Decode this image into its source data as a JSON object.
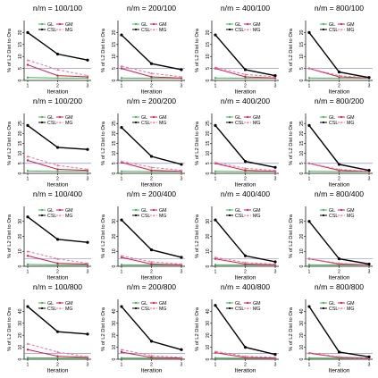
{
  "chart_data": [
    {
      "title": "n/m = 100/100",
      "xlabel": "Iteration",
      "ylabel": "% of L2 Dist to Ora",
      "type": "line",
      "x": [
        1,
        2,
        3
      ],
      "ylim": [
        0,
        25
      ],
      "yticks": [
        0,
        5,
        10,
        15,
        20
      ],
      "hline": 5,
      "series": [
        {
          "name": "GL",
          "values": [
            1.2,
            1.0,
            1.0
          ]
        },
        {
          "name": "CSL",
          "values": [
            20,
            11,
            8.5
          ]
        },
        {
          "name": "GM",
          "values": [
            6.5,
            2.0,
            1.5
          ]
        },
        {
          "name": "MG",
          "values": [
            8.5,
            4.5,
            2.0
          ]
        }
      ]
    },
    {
      "title": "n/m = 200/100",
      "xlabel": "Iteration",
      "ylabel": "% of L2 Dist to Ora",
      "type": "line",
      "x": [
        1,
        2,
        3
      ],
      "ylim": [
        0,
        25
      ],
      "yticks": [
        0,
        5,
        10,
        15,
        20
      ],
      "hline": 5,
      "series": [
        {
          "name": "GL",
          "values": [
            1.0,
            0.9,
            0.9
          ]
        },
        {
          "name": "CSL",
          "values": [
            19,
            7,
            4.5
          ]
        },
        {
          "name": "GM",
          "values": [
            5,
            1.5,
            1.0
          ]
        },
        {
          "name": "MG",
          "values": [
            6,
            3,
            1.5
          ]
        }
      ]
    },
    {
      "title": "n/m = 400/100",
      "xlabel": "Iteration",
      "ylabel": "% of L2 Dist to Ora",
      "type": "line",
      "x": [
        1,
        2,
        3
      ],
      "ylim": [
        0,
        25
      ],
      "yticks": [
        0,
        5,
        10,
        15,
        20
      ],
      "hline": 5,
      "series": [
        {
          "name": "GL",
          "values": [
            1.0,
            0.9,
            0.9
          ]
        },
        {
          "name": "CSL",
          "values": [
            19,
            4.5,
            2.0
          ]
        },
        {
          "name": "GM",
          "values": [
            5,
            1.5,
            1.0
          ]
        },
        {
          "name": "MG",
          "values": [
            5.5,
            2.5,
            1.5
          ]
        }
      ]
    },
    {
      "title": "n/m = 800/100",
      "xlabel": "Iteration",
      "ylabel": "% of L2 Dist to Ora",
      "type": "line",
      "x": [
        1,
        2,
        3
      ],
      "ylim": [
        0,
        25
      ],
      "yticks": [
        0,
        5,
        10,
        15,
        20
      ],
      "hline": 5,
      "series": [
        {
          "name": "GL",
          "values": [
            1.0,
            0.9,
            0.9
          ]
        },
        {
          "name": "CSL",
          "values": [
            20,
            3.5,
            1.2
          ]
        },
        {
          "name": "GM",
          "values": [
            5,
            1.5,
            1.0
          ]
        },
        {
          "name": "MG",
          "values": [
            5,
            2.0,
            1.0
          ]
        }
      ]
    },
    {
      "title": "n/m = 100/200",
      "xlabel": "Iteration",
      "ylabel": "% of L2 Dist to Ora",
      "type": "line",
      "x": [
        1,
        2,
        3
      ],
      "ylim": [
        0,
        30
      ],
      "yticks": [
        0,
        5,
        10,
        15,
        20,
        25
      ],
      "hline": 5,
      "series": [
        {
          "name": "GL",
          "values": [
            1.2,
            1.0,
            1.0
          ]
        },
        {
          "name": "CSL",
          "values": [
            24,
            13,
            12
          ]
        },
        {
          "name": "GM",
          "values": [
            6.5,
            2.0,
            1.5
          ]
        },
        {
          "name": "MG",
          "values": [
            8.5,
            4.0,
            2.0
          ]
        }
      ]
    },
    {
      "title": "n/m = 200/200",
      "xlabel": "Iteration",
      "ylabel": "% of L2 Dist to Ora",
      "type": "line",
      "x": [
        1,
        2,
        3
      ],
      "ylim": [
        0,
        30
      ],
      "yticks": [
        0,
        5,
        10,
        15,
        20,
        25
      ],
      "hline": 5,
      "series": [
        {
          "name": "GL",
          "values": [
            1.0,
            0.9,
            0.9
          ]
        },
        {
          "name": "CSL",
          "values": [
            23,
            8.5,
            4.5
          ]
        },
        {
          "name": "GM",
          "values": [
            5.5,
            1.5,
            1.0
          ]
        },
        {
          "name": "MG",
          "values": [
            6,
            3,
            1.5
          ]
        }
      ]
    },
    {
      "title": "n/m = 400/200",
      "xlabel": "Iteration",
      "ylabel": "% of L2 Dist to Ora",
      "type": "line",
      "x": [
        1,
        2,
        3
      ],
      "ylim": [
        0,
        30
      ],
      "yticks": [
        0,
        5,
        10,
        15,
        20,
        25
      ],
      "hline": 5,
      "series": [
        {
          "name": "GL",
          "values": [
            1.0,
            0.9,
            0.9
          ]
        },
        {
          "name": "CSL",
          "values": [
            24,
            6,
            3
          ]
        },
        {
          "name": "GM",
          "values": [
            5,
            1.5,
            1.0
          ]
        },
        {
          "name": "MG",
          "values": [
            5.5,
            2.5,
            1.5
          ]
        }
      ]
    },
    {
      "title": "n/m = 800/200",
      "xlabel": "Iteration",
      "ylabel": "% of L2 Dist to Ora",
      "type": "line",
      "x": [
        1,
        2,
        3
      ],
      "ylim": [
        0,
        30
      ],
      "yticks": [
        0,
        5,
        10,
        15,
        20,
        25
      ],
      "hline": 5,
      "series": [
        {
          "name": "GL",
          "values": [
            1.0,
            0.9,
            0.9
          ]
        },
        {
          "name": "CSL",
          "values": [
            24,
            4.5,
            1.5
          ]
        },
        {
          "name": "GM",
          "values": [
            5,
            1.5,
            1.0
          ]
        },
        {
          "name": "MG",
          "values": [
            5,
            2.0,
            1.0
          ]
        }
      ]
    },
    {
      "title": "n/m = 100/400",
      "xlabel": "Iteration",
      "ylabel": "% of L2 Dist to Ora",
      "type": "line",
      "x": [
        1,
        2,
        3
      ],
      "ylim": [
        0,
        40
      ],
      "yticks": [
        0,
        10,
        20,
        30
      ],
      "hline": 5,
      "series": [
        {
          "name": "GL",
          "values": [
            1.2,
            1.0,
            1.0
          ]
        },
        {
          "name": "CSL",
          "values": [
            33,
            18,
            16
          ]
        },
        {
          "name": "GM",
          "values": [
            7,
            2.0,
            1.5
          ]
        },
        {
          "name": "MG",
          "values": [
            10,
            5,
            2.0
          ]
        }
      ]
    },
    {
      "title": "n/m = 200/400",
      "xlabel": "Iteration",
      "ylabel": "% of L2 Dist to Ora",
      "type": "line",
      "x": [
        1,
        2,
        3
      ],
      "ylim": [
        0,
        40
      ],
      "yticks": [
        0,
        10,
        20,
        30
      ],
      "hline": 5,
      "series": [
        {
          "name": "GL",
          "values": [
            1.0,
            0.9,
            0.9
          ]
        },
        {
          "name": "CSL",
          "values": [
            31,
            11,
            6
          ]
        },
        {
          "name": "GM",
          "values": [
            6,
            1.5,
            1.0
          ]
        },
        {
          "name": "MG",
          "values": [
            7,
            3,
            1.5
          ]
        }
      ]
    },
    {
      "title": "n/m = 400/400",
      "xlabel": "Iteration",
      "ylabel": "% of L2 Dist to Ora",
      "type": "line",
      "x": [
        1,
        2,
        3
      ],
      "ylim": [
        0,
        40
      ],
      "yticks": [
        0,
        10,
        20,
        30
      ],
      "hline": 5,
      "series": [
        {
          "name": "GL",
          "values": [
            1.0,
            0.9,
            0.9
          ]
        },
        {
          "name": "CSL",
          "values": [
            31,
            7,
            3
          ]
        },
        {
          "name": "GM",
          "values": [
            5,
            1.5,
            1.0
          ]
        },
        {
          "name": "MG",
          "values": [
            6,
            2.5,
            1.5
          ]
        }
      ]
    },
    {
      "title": "n/m = 800/400",
      "xlabel": "Iteration",
      "ylabel": "% of L2 Dist to Ora",
      "type": "line",
      "x": [
        1,
        2,
        3
      ],
      "ylim": [
        0,
        40
      ],
      "yticks": [
        0,
        10,
        20,
        30
      ],
      "hline": 5,
      "series": [
        {
          "name": "GL",
          "values": [
            1.0,
            0.9,
            0.9
          ]
        },
        {
          "name": "CSL",
          "values": [
            30,
            5,
            1.5
          ]
        },
        {
          "name": "GM",
          "values": [
            5,
            1.5,
            1.0
          ]
        },
        {
          "name": "MG",
          "values": [
            5,
            2.0,
            1.0
          ]
        }
      ]
    },
    {
      "title": "n/m = 100/800",
      "xlabel": "Iteration",
      "ylabel": "% of L2 Dist to Ora",
      "type": "line",
      "x": [
        1,
        2,
        3
      ],
      "ylim": [
        0,
        50
      ],
      "yticks": [
        0,
        10,
        20,
        30,
        40
      ],
      "hline": 5,
      "series": [
        {
          "name": "GL",
          "values": [
            1.2,
            1.0,
            1.0
          ]
        },
        {
          "name": "CSL",
          "values": [
            44,
            23,
            21
          ]
        },
        {
          "name": "GM",
          "values": [
            8,
            2.5,
            1.5
          ]
        },
        {
          "name": "MG",
          "values": [
            13,
            6,
            2.0
          ]
        }
      ]
    },
    {
      "title": "n/m = 200/800",
      "xlabel": "Iteration",
      "ylabel": "% of L2 Dist to Ora",
      "type": "line",
      "x": [
        1,
        2,
        3
      ],
      "ylim": [
        0,
        50
      ],
      "yticks": [
        0,
        10,
        20,
        30,
        40
      ],
      "hline": 5,
      "series": [
        {
          "name": "GL",
          "values": [
            1.0,
            0.9,
            0.9
          ]
        },
        {
          "name": "CSL",
          "values": [
            44,
            15,
            8
          ]
        },
        {
          "name": "GM",
          "values": [
            6,
            1.5,
            1.0
          ]
        },
        {
          "name": "MG",
          "values": [
            8,
            3,
            1.5
          ]
        }
      ]
    },
    {
      "title": "n/m = 400/800",
      "xlabel": "Iteration",
      "ylabel": "% of L2 Dist to Ora",
      "type": "line",
      "x": [
        1,
        2,
        3
      ],
      "ylim": [
        0,
        50
      ],
      "yticks": [
        0,
        10,
        20,
        30,
        40
      ],
      "hline": 5,
      "series": [
        {
          "name": "GL",
          "values": [
            1.0,
            0.9,
            0.9
          ]
        },
        {
          "name": "CSL",
          "values": [
            45,
            10,
            4
          ]
        },
        {
          "name": "GM",
          "values": [
            5.5,
            1.5,
            1.0
          ]
        },
        {
          "name": "MG",
          "values": [
            6.5,
            2.5,
            1.5
          ]
        }
      ]
    },
    {
      "title": "n/m = 800/800",
      "xlabel": "Iteration",
      "ylabel": "% of L2 Dist to Ora",
      "type": "line",
      "x": [
        1,
        2,
        3
      ],
      "ylim": [
        0,
        50
      ],
      "yticks": [
        0,
        10,
        20,
        30,
        40
      ],
      "hline": 5,
      "series": [
        {
          "name": "GL",
          "values": [
            1.0,
            0.9,
            0.9
          ]
        },
        {
          "name": "CSL",
          "values": [
            44,
            6,
            2
          ]
        },
        {
          "name": "GM",
          "values": [
            5,
            1.5,
            1.0
          ]
        },
        {
          "name": "MG",
          "values": [
            5.5,
            2.0,
            1.0
          ]
        }
      ]
    }
  ],
  "style": {
    "colors": {
      "GL": "#3cb44b",
      "CSL": "#000000",
      "GM": "#d6194b",
      "MG": "#e8739a",
      "hline": "#7a7fb8"
    },
    "dashed": [
      "MG"
    ],
    "legend_order": [
      "GL",
      "GM",
      "CSL",
      "MG"
    ],
    "grid": false,
    "legend_placement": "top-right"
  }
}
